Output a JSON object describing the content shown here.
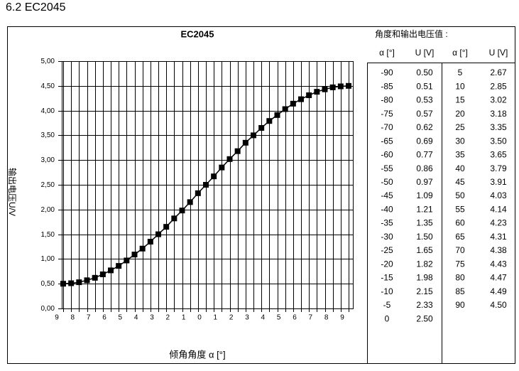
{
  "heading": "6.2 EC2045",
  "chart_data": {
    "type": "line",
    "title": "EC2045",
    "x_label": "倾角角度 α [°]",
    "y_label": "输出电压U/V",
    "x": [
      -90,
      -85,
      -80,
      -75,
      -70,
      -65,
      -60,
      -55,
      -50,
      -45,
      -40,
      -35,
      -30,
      -25,
      -20,
      -15,
      -10,
      -5,
      0,
      5,
      10,
      15,
      20,
      25,
      30,
      35,
      40,
      45,
      50,
      55,
      60,
      65,
      70,
      75,
      80,
      85,
      90
    ],
    "series": [
      {
        "name": "EC2045",
        "color": "#000000",
        "values": [
          0.5,
          0.51,
          0.53,
          0.57,
          0.62,
          0.69,
          0.77,
          0.86,
          0.97,
          1.09,
          1.21,
          1.35,
          1.5,
          1.65,
          1.82,
          1.98,
          2.15,
          2.33,
          2.5,
          2.67,
          2.85,
          3.02,
          3.18,
          3.35,
          3.5,
          3.65,
          3.79,
          3.91,
          4.03,
          4.14,
          4.23,
          4.31,
          4.38,
          4.43,
          4.47,
          4.49,
          4.5
        ],
        "value_labels": [
          "0.50",
          "0.51",
          "0.53",
          "0.57",
          "0.62",
          "0.69",
          "0.77",
          "0.86",
          "0.97",
          "1.09",
          "1.21",
          "1.35",
          "1.50",
          "1.65",
          "1.82",
          "1.98",
          "2.15",
          "2.33",
          "2.50",
          "2.67",
          "2.85",
          "3.02",
          "3.18",
          "3.35",
          "3.50",
          "3.65",
          "3.79",
          "3.91",
          "4.03",
          "4.14",
          "4.23",
          "4.31",
          "4.38",
          "4.43",
          "4.47",
          "4.49",
          "4.50"
        ]
      }
    ],
    "xlim": [
      -90,
      90
    ],
    "xticks": [
      {
        "value": -90,
        "label": "9"
      },
      {
        "value": -80,
        "label": "8"
      },
      {
        "value": -70,
        "label": "7"
      },
      {
        "value": -60,
        "label": "6"
      },
      {
        "value": -50,
        "label": "5"
      },
      {
        "value": -40,
        "label": "4"
      },
      {
        "value": -30,
        "label": "3"
      },
      {
        "value": -20,
        "label": "2"
      },
      {
        "value": -10,
        "label": "1"
      },
      0,
      {
        "value": 10,
        "label": "1"
      },
      {
        "value": 20,
        "label": "2"
      },
      {
        "value": 30,
        "label": "3"
      },
      {
        "value": 40,
        "label": "4"
      },
      {
        "value": 50,
        "label": "5"
      },
      {
        "value": 60,
        "label": "6"
      },
      {
        "value": 70,
        "label": "7"
      },
      {
        "value": 80,
        "label": "8"
      },
      {
        "value": 90,
        "label": "9"
      }
    ],
    "ylim": [
      0,
      5
    ],
    "yticks": [
      {
        "value": 0,
        "label": "0,00"
      },
      {
        "value": 0.5,
        "label": "0,50"
      },
      {
        "value": 1,
        "label": "1,00"
      },
      {
        "value": 1.5,
        "label": "1,50"
      },
      {
        "value": 2,
        "label": "2,00"
      },
      {
        "value": 2.5,
        "label": "2,50"
      },
      {
        "value": 3,
        "label": "3,00"
      },
      {
        "value": 3.5,
        "label": "3,50"
      },
      {
        "value": 4,
        "label": "4,00"
      },
      {
        "value": 4.5,
        "label": "4,50"
      },
      {
        "value": 5,
        "label": "5,00"
      }
    ],
    "grid": true
  },
  "table": {
    "title": "角度和输出电压值 :",
    "headers": [
      "α [°]",
      "U [V]",
      "α [°]",
      "U [V]"
    ]
  }
}
